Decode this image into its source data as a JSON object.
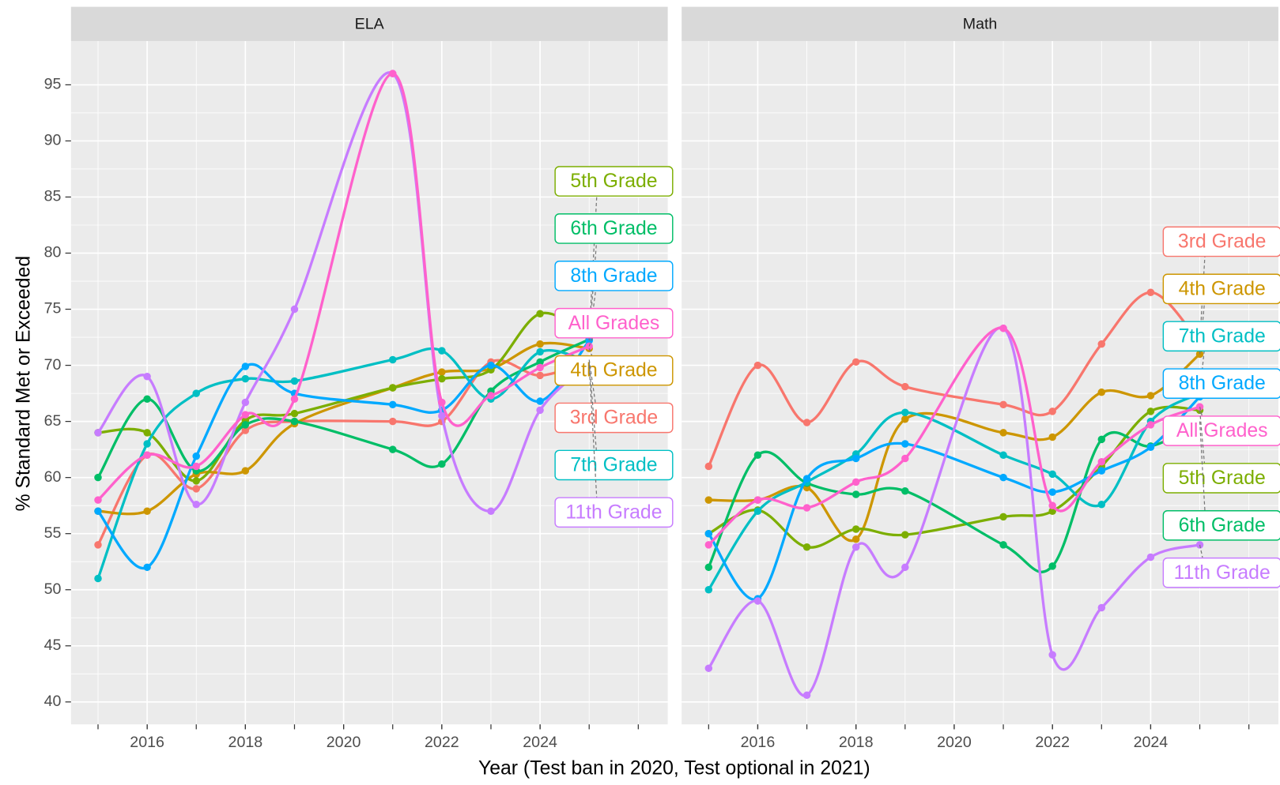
{
  "chart_data": [
    {
      "type": "line",
      "title": "ELA",
      "xlabel": "Year (Test ban in 2020, Test optional in 2021)",
      "ylabel": "% Standard Met or Exceeded",
      "x": [
        2015,
        2016,
        2017,
        2018,
        2019,
        2021,
        2022,
        2023,
        2024,
        2025
      ],
      "xlim": [
        2014.45,
        2026.6
      ],
      "ylim": [
        38,
        98.9
      ],
      "xticks": [
        2016,
        2018,
        2020,
        2022,
        2024
      ],
      "yticks": [
        40,
        45,
        50,
        55,
        60,
        65,
        70,
        75,
        80,
        85,
        90,
        95
      ],
      "grid": true,
      "series": [
        {
          "name": "3rd Grade",
          "color": "#F8766D",
          "values": [
            54,
            62,
            59,
            64.2,
            65,
            65,
            65,
            70.3,
            69.1,
            70.5
          ]
        },
        {
          "name": "4th Grade",
          "color": "#CD9600",
          "values": [
            57,
            57,
            60.3,
            60.6,
            64.8,
            68,
            69.4,
            69.7,
            71.9,
            71.5
          ]
        },
        {
          "name": "5th Grade",
          "color": "#7CAE00",
          "values": [
            64,
            64,
            59.7,
            65.1,
            65.7,
            68,
            68.8,
            69.6,
            74.6,
            72.5
          ]
        },
        {
          "name": "6th Grade",
          "color": "#00BE67",
          "values": [
            60,
            67,
            60.6,
            64.7,
            65,
            62.5,
            61.2,
            67.7,
            70.3,
            72.3
          ]
        },
        {
          "name": "7th Grade",
          "color": "#00BFC4",
          "values": [
            51,
            63,
            67.5,
            68.8,
            68.6,
            70.5,
            71.3,
            67,
            71.2,
            70.3
          ]
        },
        {
          "name": "8th Grade",
          "color": "#00A9FF",
          "values": [
            57,
            52,
            61.9,
            69.9,
            67.5,
            66.5,
            66,
            70,
            66.8,
            72.2
          ]
        },
        {
          "name": "11th Grade",
          "color": "#C77CFF",
          "values": [
            64,
            69,
            57.6,
            66.7,
            75,
            96,
            65.5,
            57,
            66,
            70
          ]
        },
        {
          "name": "All Grades",
          "color": "#FF61CC",
          "values": [
            58,
            62,
            61,
            65.6,
            67,
            96,
            66.7,
            67.3,
            69.8,
            71.7
          ]
        }
      ]
    },
    {
      "type": "line",
      "title": "Math",
      "x": [
        2015,
        2016,
        2017,
        2018,
        2019,
        2021,
        2022,
        2023,
        2024,
        2025
      ],
      "xlim": [
        2014.45,
        2026.6
      ],
      "ylim": [
        38,
        98.9
      ],
      "xticks": [
        2016,
        2018,
        2020,
        2022,
        2024
      ],
      "yticks": [
        40,
        45,
        50,
        55,
        60,
        65,
        70,
        75,
        80,
        85,
        90,
        95
      ],
      "grid": true,
      "series": [
        {
          "name": "3rd Grade",
          "color": "#F8766D",
          "values": [
            61,
            70,
            64.9,
            70.3,
            68.1,
            66.5,
            65.9,
            71.9,
            76.5,
            72
          ]
        },
        {
          "name": "4th Grade",
          "color": "#CD9600",
          "values": [
            58,
            58,
            59.1,
            54.5,
            65.2,
            64,
            63.6,
            67.6,
            67.3,
            71
          ]
        },
        {
          "name": "5th Grade",
          "color": "#7CAE00",
          "values": [
            55,
            57.1,
            53.8,
            55.4,
            54.9,
            56.5,
            57,
            61,
            65.9,
            66
          ]
        },
        {
          "name": "6th Grade",
          "color": "#00BE67",
          "values": [
            52,
            62,
            59.5,
            58.5,
            58.8,
            54,
            52.1,
            63.4,
            62.8,
            65
          ]
        },
        {
          "name": "7th Grade",
          "color": "#00BFC4",
          "values": [
            50,
            57,
            59.6,
            62.1,
            65.8,
            62,
            60.3,
            57.6,
            65,
            67.5
          ]
        },
        {
          "name": "8th Grade",
          "color": "#00A9FF",
          "values": [
            55,
            49.2,
            59.9,
            61.7,
            63,
            60,
            58.7,
            60.6,
            62.7,
            67.2
          ]
        },
        {
          "name": "11th Grade",
          "color": "#C77CFF",
          "values": [
            43,
            49,
            40.6,
            53.8,
            52,
            73.3,
            44.2,
            48.4,
            52.9,
            54
          ]
        },
        {
          "name": "All Grades",
          "color": "#FF61CC",
          "values": [
            54,
            58,
            57.3,
            59.6,
            61.7,
            73.3,
            57.5,
            61.4,
            64.7,
            66.3
          ]
        }
      ]
    }
  ]
}
